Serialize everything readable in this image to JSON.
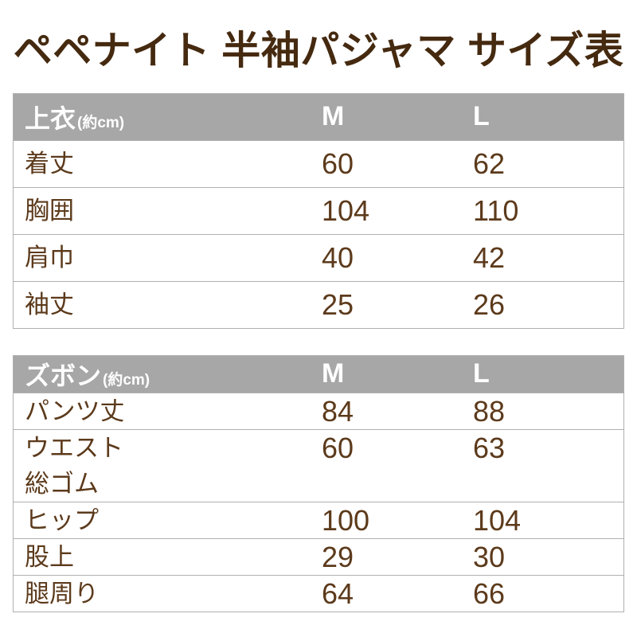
{
  "title": "ペペナイト 半袖パジャマ サイズ表",
  "colors": {
    "title_text": "#452a10",
    "body_text": "#5c3a1b",
    "header_bg": "#a7a7a7",
    "header_text": "#ffffff",
    "border": "#b0b0b0",
    "page_bg": "#ffffff"
  },
  "tables": [
    {
      "header": {
        "label": "上衣",
        "unit": "(約cm)",
        "col_m": "M",
        "col_l": "L"
      },
      "rows": [
        {
          "label": "着丈",
          "m": "60",
          "l": "62"
        },
        {
          "label": "胸囲",
          "m": "104",
          "l": "110"
        },
        {
          "label": "肩巾",
          "m": "40",
          "l": "42"
        },
        {
          "label": "袖丈",
          "m": "25",
          "l": "26"
        }
      ]
    },
    {
      "header": {
        "label": "ズボン",
        "unit": "(約cm)",
        "col_m": "M",
        "col_l": "L"
      },
      "rows": [
        {
          "label": "パンツ丈",
          "m": "84",
          "l": "88"
        },
        {
          "label": "ウエスト\n総ゴム",
          "m": "60",
          "l": "63"
        },
        {
          "label": "ヒップ",
          "m": "100",
          "l": "104"
        },
        {
          "label": "股上",
          "m": "29",
          "l": "30"
        },
        {
          "label": "腿周り",
          "m": "64",
          "l": "66"
        }
      ]
    }
  ],
  "chart_data": [
    {
      "type": "table",
      "title": "上衣(約cm)",
      "columns": [
        "",
        "M",
        "L"
      ],
      "rows": [
        [
          "着丈",
          60,
          62
        ],
        [
          "胸囲",
          104,
          110
        ],
        [
          "肩巾",
          40,
          42
        ],
        [
          "袖丈",
          25,
          26
        ]
      ]
    },
    {
      "type": "table",
      "title": "ズボン(約cm)",
      "columns": [
        "",
        "M",
        "L"
      ],
      "rows": [
        [
          "パンツ丈",
          84,
          88
        ],
        [
          "ウエスト総ゴム",
          60,
          63
        ],
        [
          "ヒップ",
          100,
          104
        ],
        [
          "股上",
          29,
          30
        ],
        [
          "腿周り",
          64,
          66
        ]
      ]
    }
  ]
}
